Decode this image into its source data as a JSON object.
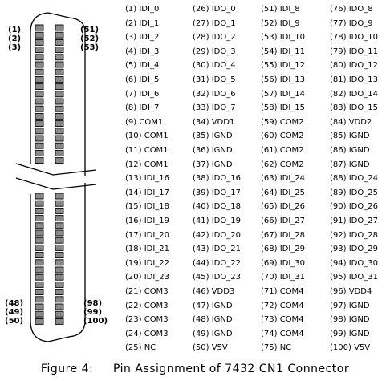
{
  "connector_labels": {
    "top_left": [
      "(1)",
      "(2)",
      "(3)"
    ],
    "top_right": [
      "(51)",
      "(52)",
      "(53)"
    ],
    "bottom_left": [
      "(48)",
      "(49)",
      "(50)"
    ],
    "bottom_right": [
      "(98)",
      "(99)",
      "(100)"
    ]
  },
  "pins": {
    "col1": [
      "(1) IDI_0",
      "(2) IDI_1",
      "(3) IDI_2",
      "(4) IDI_3",
      "(5) IDI_4",
      "(6) IDI_5",
      "(7) IDI_6",
      "(8) IDI_7",
      "(9) COM1",
      "(10) COM1",
      "(11) COM1",
      "(12) COM1",
      "(13) IDI_16",
      "(14) IDI_17",
      "(15) IDI_18",
      "(16) IDI_19",
      "(17) IDI_20",
      "(18) IDI_21",
      "(19) IDI_22",
      "(20) IDI_23",
      "(21) COM3",
      "(22) COM3",
      "(23) COM3",
      "(24) COM3",
      "(25) NC"
    ],
    "col2": [
      "(26) IDO_0",
      "(27) IDO_1",
      "(28) IDO_2",
      "(29) IDO_3",
      "(30) IDO_4",
      "(31) IDO_5",
      "(32) IDO_6",
      "(33) IDO_7",
      "(34) VDD1",
      "(35) IGND",
      "(36) IGND",
      "(37) IGND",
      "(38) IDO_16",
      "(39) IDO_17",
      "(40) IDO_18",
      "(41) IDO_19",
      "(42) IDO_20",
      "(43) IDO_21",
      "(44) IDO_22",
      "(45) IDO_23",
      "(46) VDD3",
      "(47) IGND",
      "(48) IGND",
      "(49) IGND",
      "(50) V5V"
    ],
    "col3": [
      "(51) IDI_8",
      "(52) IDI_9",
      "(53) IDI_10",
      "(54) IDI_11",
      "(55) IDI_12",
      "(56) IDI_13",
      "(57) IDI_14",
      "(58) IDI_15",
      "(59) COM2",
      "(60) COM2",
      "(61) COM2",
      "(62) COM2",
      "(63) IDI_24",
      "(64) IDI_25",
      "(65) IDI_26",
      "(66) IDI_27",
      "(67) IDI_28",
      "(68) IDI_29",
      "(69) IDI_30",
      "(70) IDI_31",
      "(71) COM4",
      "(72) COM4",
      "(73) COM4",
      "(74) COM4",
      "(75) NC"
    ],
    "col4": [
      "(76) IDO_8",
      "(77) IDO_9",
      "(78) IDO_10",
      "(79) IDO_11",
      "(80) IDO_12",
      "(81) IDO_13",
      "(82) IDO_14",
      "(83) IDO_15",
      "(84) VDD2",
      "(85) IGND",
      "(86) IGND",
      "(87) IGND",
      "(88) IDO_24",
      "(89) IDO_25",
      "(90) IDO_26",
      "(91) IDO_27",
      "(92) IDO_28",
      "(93) IDO_29",
      "(94) IDO_30",
      "(95) IDO_31",
      "(96) VDD4",
      "(97) IGND",
      "(98) IGND",
      "(99) IGND",
      "(100) V5V"
    ]
  },
  "caption": {
    "label": "Figure 4:",
    "text": "Pin Assignment of 7432 CN1 Connector"
  },
  "colors": {
    "pin_fill": "#888888",
    "outline": "#000000"
  }
}
